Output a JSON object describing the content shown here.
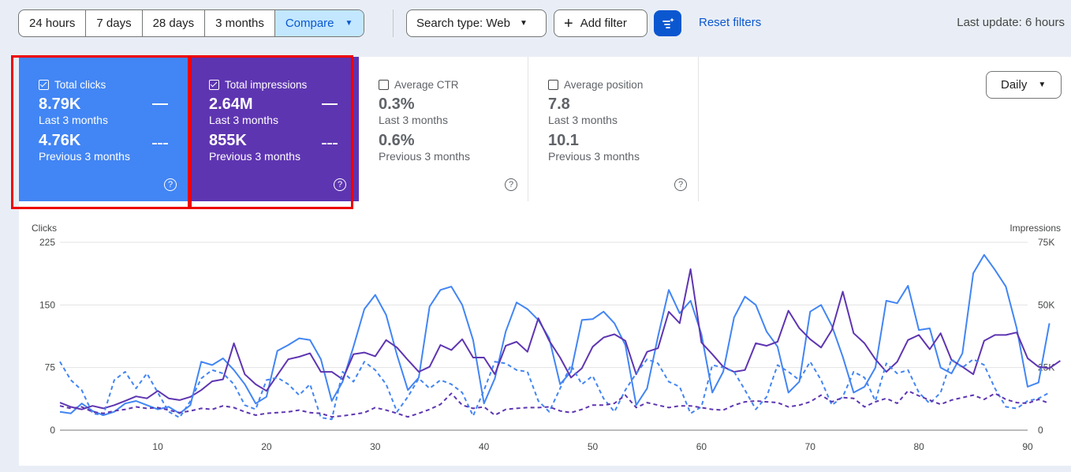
{
  "toolbar": {
    "ranges": [
      "24 hours",
      "7 days",
      "28 days",
      "3 months"
    ],
    "compare_label": "Compare",
    "search_type_label": "Search type: Web",
    "add_filter_label": "Add filter",
    "reset_label": "Reset filters",
    "last_update": "Last update: 6 hours"
  },
  "cards": {
    "clicks": {
      "label": "Total clicks",
      "current": "8.79K",
      "current_period": "Last 3 months",
      "previous": "4.76K",
      "previous_period": "Previous 3 months",
      "checked": true
    },
    "impressions": {
      "label": "Total impressions",
      "current": "2.64M",
      "current_period": "Last 3 months",
      "previous": "855K",
      "previous_period": "Previous 3 months",
      "checked": true
    },
    "ctr": {
      "label": "Average CTR",
      "current": "0.3%",
      "current_period": "Last 3 months",
      "previous": "0.6%",
      "previous_period": "Previous 3 months",
      "checked": false
    },
    "position": {
      "label": "Average position",
      "current": "7.8",
      "current_period": "Last 3 months",
      "previous": "10.1",
      "previous_period": "Previous 3 months",
      "checked": false
    }
  },
  "granularity": "Daily",
  "help_glyph": "?",
  "colors": {
    "clicks": "#4285f4",
    "impressions": "#5e35b1",
    "highlight": "#e00000",
    "accent": "#0b57d0"
  },
  "chart_data": {
    "type": "line",
    "left_axis": {
      "label": "Clicks",
      "ticks": [
        "0",
        "75",
        "150",
        "225"
      ],
      "range": [
        0,
        225
      ]
    },
    "right_axis": {
      "label": "Impressions",
      "ticks": [
        "0",
        "25K",
        "50K",
        "75K"
      ],
      "range": [
        0,
        75000
      ]
    },
    "x_ticks": [
      "10",
      "20",
      "30",
      "40",
      "50",
      "60",
      "70",
      "80",
      "90"
    ],
    "x_range": [
      1,
      90
    ],
    "grid": "horizontal",
    "series": [
      {
        "axis": "left",
        "style": "solid",
        "color": "#4285f4",
        "values": [
          22,
          20,
          32,
          23,
          18,
          22,
          32,
          35,
          30,
          25,
          28,
          20,
          30,
          82,
          78,
          86,
          72,
          55,
          32,
          40,
          95,
          102,
          110,
          108,
          85,
          35,
          58,
          100,
          145,
          162,
          138,
          90,
          48,
          63,
          148,
          168,
          172,
          150,
          108,
          32,
          62,
          118,
          153,
          145,
          132,
          110,
          55,
          70,
          132,
          133,
          142,
          128,
          102,
          30,
          50,
          112,
          168,
          140,
          155,
          115,
          45,
          70,
          135,
          160,
          150,
          118,
          100,
          45,
          58,
          142,
          150,
          125,
          88,
          45,
          52,
          75,
          155,
          152,
          173,
          120,
          122,
          75,
          68,
          92,
          188,
          210,
          192,
          172,
          122,
          52,
          57,
          128
        ]
      },
      {
        "axis": "right",
        "style": "solid",
        "color": "#5e35b1",
        "values": [
          11000,
          9300,
          8300,
          9700,
          8700,
          10000,
          11700,
          13500,
          12700,
          15700,
          12700,
          12000,
          13300,
          16000,
          19500,
          20300,
          34700,
          22300,
          18300,
          15700,
          22000,
          28300,
          29300,
          30700,
          23300,
          23300,
          20300,
          30300,
          31000,
          29500,
          36000,
          33000,
          28000,
          23300,
          25300,
          34000,
          32000,
          36300,
          29000,
          29000,
          22300,
          33700,
          35300,
          31300,
          44700,
          35700,
          29000,
          21000,
          24700,
          33300,
          37000,
          38300,
          35700,
          22300,
          31300,
          32700,
          47300,
          42700,
          64300,
          35000,
          30300,
          25300,
          23300,
          24000,
          34700,
          33700,
          35300,
          47700,
          40700,
          36300,
          33000,
          40000,
          55300,
          38700,
          34700,
          28300,
          23300,
          27300,
          36000,
          38000,
          32300,
          38700,
          28000,
          25300,
          22300,
          35700,
          38000,
          38000,
          39000,
          28700,
          25300,
          24700,
          27700
        ]
      },
      {
        "axis": "left",
        "style": "dashed",
        "color": "#4285f4",
        "values": [
          82,
          60,
          48,
          20,
          18,
          60,
          70,
          50,
          68,
          45,
          22,
          15,
          35,
          62,
          72,
          68,
          55,
          30,
          25,
          60,
          63,
          55,
          42,
          55,
          15,
          13,
          70,
          58,
          82,
          72,
          55,
          22,
          40,
          62,
          50,
          60,
          55,
          45,
          17,
          48,
          82,
          80,
          72,
          70,
          35,
          22,
          50,
          78,
          55,
          65,
          38,
          22,
          48,
          68,
          85,
          80,
          58,
          52,
          20,
          28,
          78,
          75,
          70,
          48,
          25,
          40,
          78,
          70,
          60,
          82,
          60,
          30,
          40,
          70,
          63,
          35,
          80,
          68,
          72,
          45,
          32,
          45,
          85,
          75,
          85,
          78,
          50,
          28,
          26,
          35,
          38,
          45
        ]
      },
      {
        "axis": "right",
        "style": "dashed",
        "color": "#5e35b1",
        "values": [
          9700,
          8700,
          9300,
          7300,
          6700,
          7700,
          8300,
          9300,
          8700,
          9000,
          8000,
          7000,
          7700,
          8700,
          8300,
          9700,
          9000,
          7300,
          6000,
          6700,
          7000,
          7300,
          8000,
          7000,
          6700,
          5300,
          5700,
          6300,
          7000,
          9000,
          8000,
          6700,
          5300,
          6700,
          8300,
          10300,
          14700,
          10000,
          8700,
          9300,
          6000,
          8300,
          8700,
          9000,
          9000,
          9300,
          7700,
          7000,
          8300,
          10000,
          10000,
          10700,
          14000,
          9000,
          11000,
          10000,
          9000,
          9700,
          9700,
          9000,
          8300,
          8000,
          10000,
          11300,
          11700,
          11300,
          11000,
          9300,
          10000,
          11300,
          14000,
          11300,
          13000,
          12700,
          9300,
          11300,
          12700,
          10700,
          15700,
          13700,
          12000,
          10300,
          12000,
          13000,
          14000,
          12300,
          14700,
          12300,
          11000,
          10700,
          12300,
          10700
        ]
      }
    ]
  }
}
